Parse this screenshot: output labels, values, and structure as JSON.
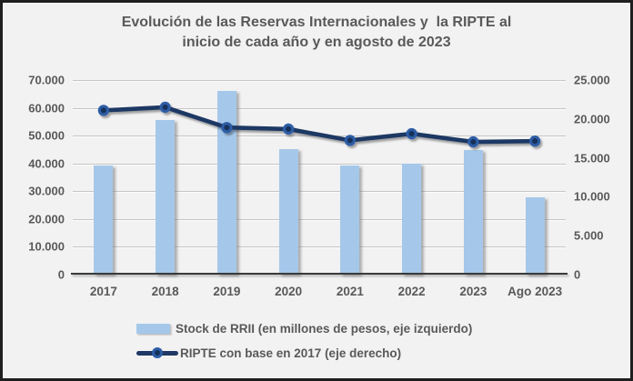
{
  "title": {
    "text": "Evolución de las Reservas Internacionales y  la RIPTE al\ninicio de cada año y en agosto de 2023"
  },
  "colors": {
    "background": "#F2F2F2",
    "panel_border": "#1F1F1F",
    "bar_fill": "#A5C8EA",
    "line": "#1F3864",
    "marker_ring": "#2E5DA6",
    "marker_center": "#14325A",
    "gridline": "#C6C6C6",
    "axis_line": "#3A3A3A",
    "text": "#595959"
  },
  "chart_data": {
    "type": "combo-bar-line",
    "title": "Evolución de las Reservas Internacionales y la RIPTE al inicio de cada año y en agosto de 2023",
    "categories": [
      "2017",
      "2018",
      "2019",
      "2020",
      "2021",
      "2022",
      "2023",
      "Ago 2023"
    ],
    "series": [
      {
        "name": "Stock de RRII (en millones de pesos, eje izquierdo)",
        "type": "bar",
        "axis": "left",
        "values": [
          39400,
          55700,
          66000,
          45000,
          39400,
          39900,
          44700,
          27800
        ]
      },
      {
        "name": "RIPTE con base en 2017 (eje derecho)",
        "type": "line",
        "axis": "right",
        "values": [
          21100,
          21500,
          18900,
          18700,
          17250,
          18100,
          17050,
          17150
        ]
      }
    ],
    "left_axis": {
      "min": 0,
      "max": 70000,
      "step": 10000,
      "tick_labels": [
        "0",
        "10.000",
        "20.000",
        "30.000",
        "40.000",
        "50.000",
        "60.000",
        "70.000"
      ]
    },
    "right_axis": {
      "min": 0,
      "max": 25000,
      "step": 5000,
      "tick_labels": [
        "0",
        "5.000",
        "10.000",
        "15.000",
        "20.000",
        "25.000"
      ]
    },
    "grid": true,
    "legend_position": "bottom"
  },
  "legend": {
    "bar_label": "Stock de RRII (en millones de pesos, eje izquierdo)",
    "line_label": "RIPTE con base en 2017 (eje derecho)"
  }
}
